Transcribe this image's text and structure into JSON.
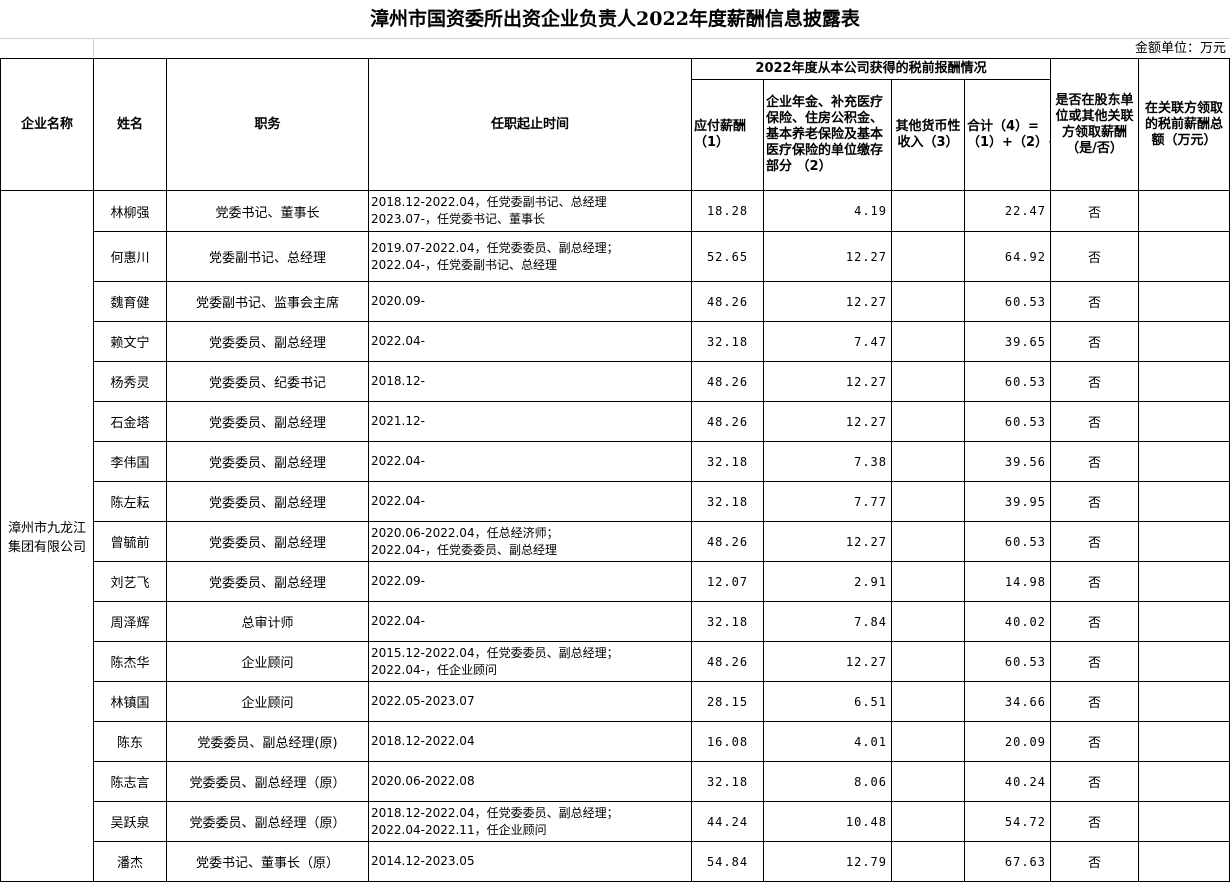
{
  "title": "漳州市国资委所出资企业负责人2022年度薪酬信息披露表",
  "unit": "金额单位：万元",
  "headers": {
    "company": "企业名称",
    "name": "姓名",
    "position": "职务",
    "tenure": "任职起止时间",
    "group": "2022年度从本公司获得的税前报酬情况",
    "salary": "应付薪酬（1）",
    "insurance": "企业年金、补充医疗保险、住房公积金、基本养老保险及基本医疗保险的单位缴存部分 （2）",
    "other": "其他货币性收入（3）",
    "total": "合计（4）=（1）+（2）+（3）",
    "related": "是否在股东单位或其他关联方领取薪酬（是/否）",
    "related_amount": "在关联方领取的税前薪酬总额（万元）"
  },
  "company": "漳州市九龙江集团有限公司",
  "rows": [
    {
      "name": "林柳强",
      "position": "党委书记、董事长",
      "tenure": [
        "2018.12-2022.04，任党委副书记、总经理",
        "2023.07-，任党委书记、董事长"
      ],
      "salary": "18.28",
      "insurance": "4.19",
      "other": "",
      "total": "22.47",
      "related": "否",
      "related_amount": ""
    },
    {
      "name": "何惠川",
      "position": "党委副书记、总经理",
      "tenure": [
        "2019.07-2022.04，任党委委员、副总经理；",
        "2022.04-，任党委副书记、总经理"
      ],
      "salary": "52.65",
      "insurance": "12.27",
      "other": "",
      "total": "64.92",
      "related": "否",
      "related_amount": ""
    },
    {
      "name": "魏育健",
      "position": "党委副书记、监事会主席",
      "tenure": [
        "2020.09-"
      ],
      "salary": "48.26",
      "insurance": "12.27",
      "other": "",
      "total": "60.53",
      "related": "否",
      "related_amount": ""
    },
    {
      "name": "赖文宁",
      "position": "党委委员、副总经理",
      "tenure": [
        "2022.04-"
      ],
      "salary": "32.18",
      "insurance": "7.47",
      "other": "",
      "total": "39.65",
      "related": "否",
      "related_amount": ""
    },
    {
      "name": "杨秀灵",
      "position": "党委委员、纪委书记",
      "tenure": [
        "2018.12-"
      ],
      "salary": "48.26",
      "insurance": "12.27",
      "other": "",
      "total": "60.53",
      "related": "否",
      "related_amount": ""
    },
    {
      "name": "石金塔",
      "position": "党委委员、副总经理",
      "tenure": [
        "2021.12-"
      ],
      "salary": "48.26",
      "insurance": "12.27",
      "other": "",
      "total": "60.53",
      "related": "否",
      "related_amount": ""
    },
    {
      "name": "李伟国",
      "position": "党委委员、副总经理",
      "tenure": [
        "2022.04-"
      ],
      "salary": "32.18",
      "insurance": "7.38",
      "other": "",
      "total": "39.56",
      "related": "否",
      "related_amount": ""
    },
    {
      "name": "陈左耘",
      "position": "党委委员、副总经理",
      "tenure": [
        "2022.04-"
      ],
      "salary": "32.18",
      "insurance": "7.77",
      "other": "",
      "total": "39.95",
      "related": "否",
      "related_amount": ""
    },
    {
      "name": "曾毓前",
      "position": "党委委员、副总经理",
      "tenure": [
        "2020.06-2022.04，任总经济师；",
        "2022.04-，任党委委员、副总经理"
      ],
      "salary": "48.26",
      "insurance": "12.27",
      "other": "",
      "total": "60.53",
      "related": "否",
      "related_amount": ""
    },
    {
      "name": "刘艺飞",
      "position": "党委委员、副总经理",
      "tenure": [
        "2022.09-"
      ],
      "salary": "12.07",
      "insurance": "2.91",
      "other": "",
      "total": "14.98",
      "related": "否",
      "related_amount": ""
    },
    {
      "name": "周泽辉",
      "position": "总审计师",
      "tenure": [
        "2022.04-"
      ],
      "salary": "32.18",
      "insurance": "7.84",
      "other": "",
      "total": "40.02",
      "related": "否",
      "related_amount": ""
    },
    {
      "name": "陈杰华",
      "position": "企业顾问",
      "tenure": [
        "2015.12-2022.04，任党委委员、副总经理；",
        "2022.04-，任企业顾问"
      ],
      "salary": "48.26",
      "insurance": "12.27",
      "other": "",
      "total": "60.53",
      "related": "否",
      "related_amount": ""
    },
    {
      "name": "林镇国",
      "position": "企业顾问",
      "tenure": [
        "2022.05-2023.07"
      ],
      "salary": "28.15",
      "insurance": "6.51",
      "other": "",
      "total": "34.66",
      "related": "否",
      "related_amount": ""
    },
    {
      "name": "陈东",
      "position": "党委委员、副总经理(原)",
      "tenure": [
        "2018.12-2022.04"
      ],
      "salary": "16.08",
      "insurance": "4.01",
      "other": "",
      "total": "20.09",
      "related": "否",
      "related_amount": ""
    },
    {
      "name": "陈志言",
      "position": "党委委员、副总经理（原）",
      "tenure": [
        "2020.06-2022.08"
      ],
      "salary": "32.18",
      "insurance": "8.06",
      "other": "",
      "total": "40.24",
      "related": "否",
      "related_amount": ""
    },
    {
      "name": "吴跃泉",
      "position": "党委委员、副总经理（原）",
      "tenure": [
        "2018.12-2022.04，任党委委员、副总经理；",
        "2022.04-2022.11，任企业顾问"
      ],
      "salary": "44.24",
      "insurance": "10.48",
      "other": "",
      "total": "54.72",
      "related": "否",
      "related_amount": ""
    },
    {
      "name": "潘杰",
      "position": "党委书记、董事长（原）",
      "tenure": [
        "2014.12-2023.05"
      ],
      "salary": "54.84",
      "insurance": "12.79",
      "other": "",
      "total": "67.63",
      "related": "否",
      "related_amount": ""
    }
  ]
}
